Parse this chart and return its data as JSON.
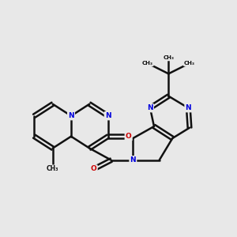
{
  "bg": "#e8e8e8",
  "bond_color": "#111111",
  "N_color": "#0000dd",
  "O_color": "#cc0000",
  "lw": 1.8,
  "doff": 0.07,
  "figsize": [
    3.0,
    3.0
  ],
  "dpi": 100,
  "xlim": [
    0.5,
    9.5
  ],
  "ylim": [
    3.2,
    9.2
  ]
}
